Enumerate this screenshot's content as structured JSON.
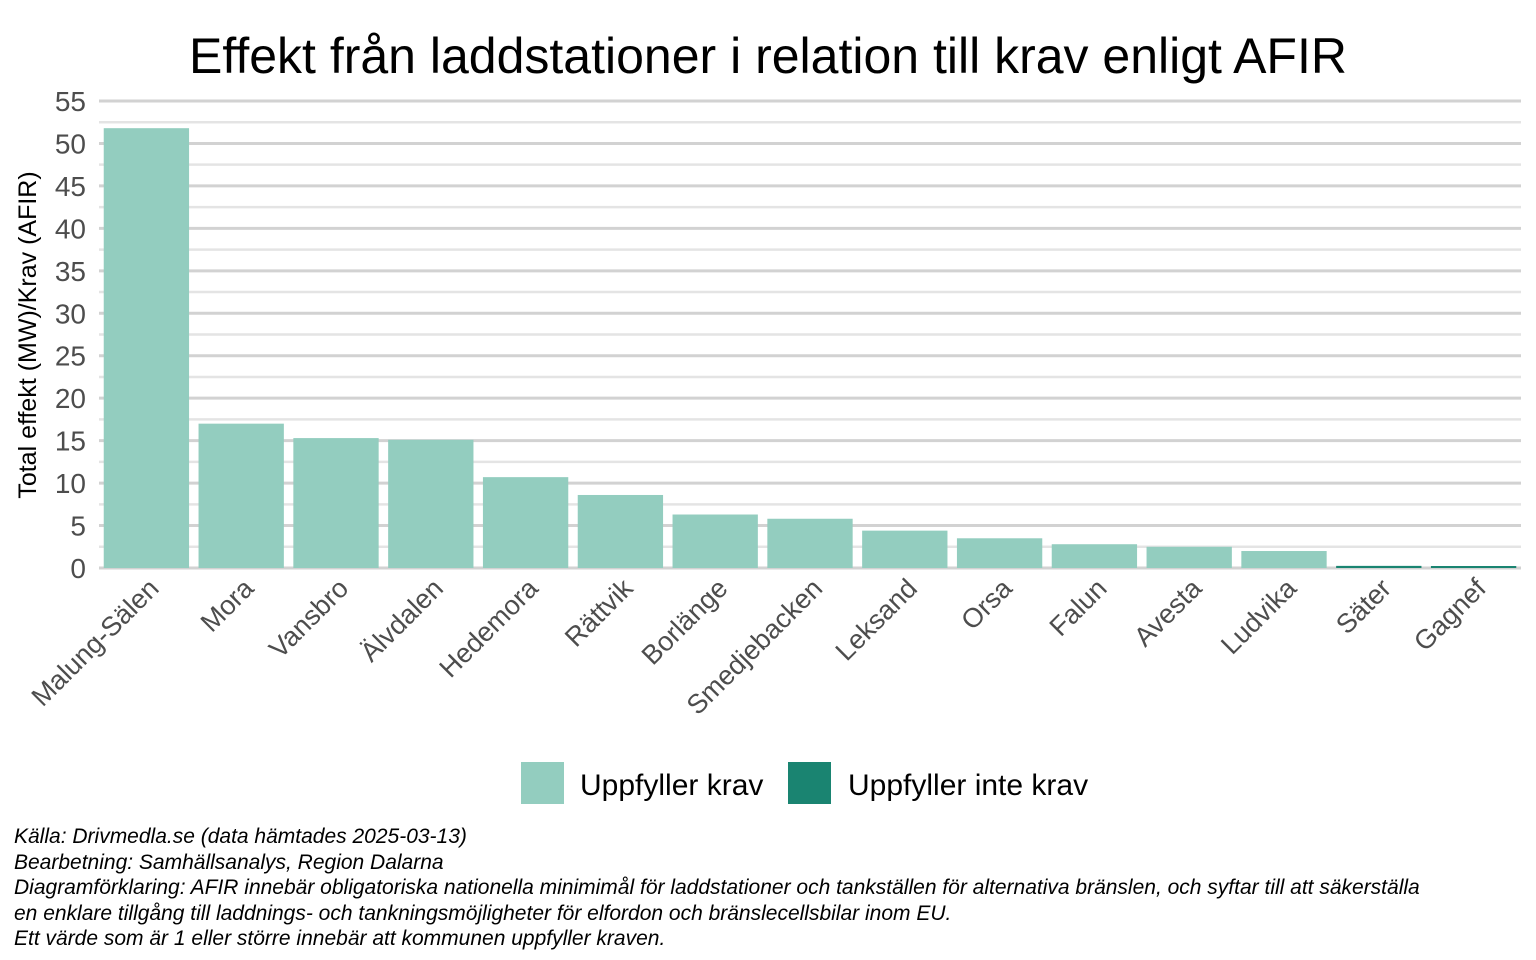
{
  "chart_data": {
    "type": "bar",
    "title": "Effekt från laddstationer i relation till krav enligt AFIR",
    "xlabel": "",
    "ylabel": "Total effekt (MW)/Krav (AFIR)",
    "ylim": [
      0,
      55
    ],
    "yticks": [
      0,
      5,
      10,
      15,
      20,
      25,
      30,
      35,
      40,
      45,
      50,
      55
    ],
    "grid": true,
    "legend_position": "bottom",
    "categories": [
      "Malung-Sälen",
      "Mora",
      "Vansbro",
      "Älvdalen",
      "Hedemora",
      "Rättvik",
      "Borlänge",
      "Smedjebacken",
      "Leksand",
      "Orsa",
      "Falun",
      "Avesta",
      "Ludvika",
      "Säter",
      "Gagnef"
    ],
    "values": [
      51.8,
      17.0,
      15.3,
      15.1,
      10.7,
      8.6,
      6.3,
      5.8,
      4.4,
      3.5,
      2.8,
      2.5,
      2.0,
      0.25,
      0.1
    ],
    "series": [
      {
        "name": "Uppfyller krav",
        "color": "#93cdbf"
      },
      {
        "name": "Uppfyller inte krav",
        "color": "#1a8471"
      }
    ],
    "bar_series": [
      0,
      0,
      0,
      0,
      0,
      0,
      0,
      0,
      0,
      0,
      0,
      0,
      0,
      1,
      1
    ]
  },
  "caption": {
    "lines": [
      "Källa:  Drivmedla.se (data hämtades 2025-03-13)",
      "Bearbetning: Samhällsanalys, Region Dalarna",
      "Diagramförklaring: AFIR innebär obligatoriska nationella minimimål för laddstationer och tankställen för alternativa bränslen, och syftar till att säkerställa",
      "en enklare tillgång till laddnings- och tankningsmöjligheter för elfordon och bränslecellsbilar inom EU.",
      "Ett värde som är 1 eller större innebär att kommunen uppfyller kraven."
    ]
  }
}
